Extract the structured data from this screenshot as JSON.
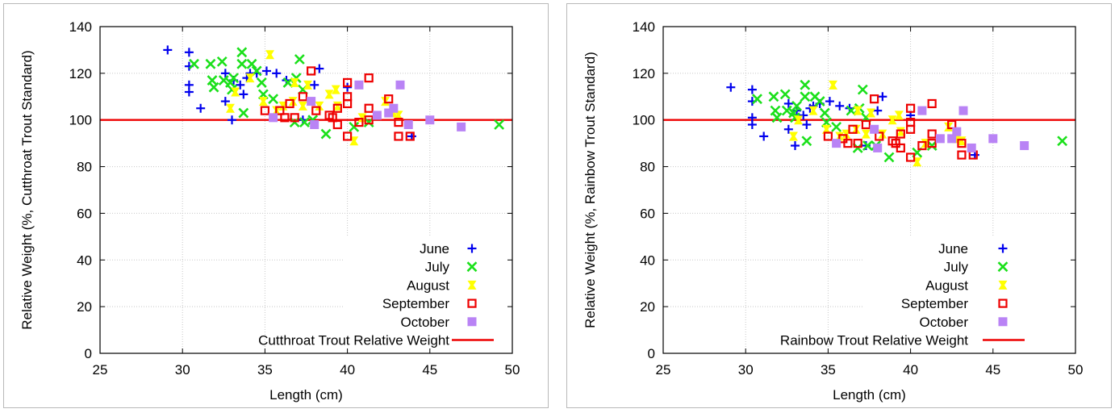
{
  "colors": {
    "June": "#0000ee",
    "July": "#1be01b",
    "August": "#ffff00",
    "September": "#ee0000",
    "October": "#b983f5",
    "reference_line": "#ee0000"
  },
  "chart_data": [
    {
      "type": "scatter",
      "title": "",
      "xlabel": "Length (cm)",
      "ylabel": "Relative Weight (%, Cutthroat Trout Standard)",
      "xlim": [
        25,
        50
      ],
      "ylim": [
        0,
        140
      ],
      "xticks": [
        25,
        30,
        35,
        40,
        45,
        50
      ],
      "yticks": [
        0,
        20,
        40,
        60,
        80,
        100,
        120,
        140
      ],
      "grid": true,
      "legend_position": "bottom-right",
      "reference_line": {
        "name": "Cutthroat Trout Relative Weight",
        "y": 100
      },
      "series": [
        {
          "name": "June",
          "marker": "plus",
          "points": [
            [
              29.1,
              130
            ],
            [
              30.4,
              129
            ],
            [
              30.4,
              123
            ],
            [
              30.4,
              115
            ],
            [
              30.4,
              112
            ],
            [
              31.1,
              105
            ],
            [
              32.6,
              120
            ],
            [
              32.6,
              108
            ],
            [
              33.0,
              100
            ],
            [
              33.1,
              117
            ],
            [
              33.5,
              115
            ],
            [
              33.7,
              111
            ],
            [
              33.9,
              118
            ],
            [
              34.1,
              120
            ],
            [
              34.5,
              120
            ],
            [
              35.1,
              121
            ],
            [
              35.7,
              120
            ],
            [
              36.3,
              117
            ],
            [
              37.3,
              100
            ],
            [
              38.0,
              115
            ],
            [
              38.3,
              122
            ],
            [
              40.0,
              114
            ],
            [
              43.9,
              93
            ]
          ]
        },
        {
          "name": "July",
          "marker": "x",
          "points": [
            [
              30.7,
              124
            ],
            [
              31.7,
              124
            ],
            [
              31.8,
              117
            ],
            [
              31.9,
              114
            ],
            [
              32.4,
              125
            ],
            [
              32.5,
              117
            ],
            [
              32.9,
              116
            ],
            [
              33.0,
              113
            ],
            [
              33.1,
              118
            ],
            [
              33.6,
              129
            ],
            [
              33.6,
              124
            ],
            [
              33.7,
              103
            ],
            [
              34.2,
              124
            ],
            [
              34.5,
              121
            ],
            [
              34.8,
              116
            ],
            [
              34.9,
              111
            ],
            [
              35.5,
              109
            ],
            [
              36.4,
              116
            ],
            [
              36.9,
              118
            ],
            [
              37.1,
              126
            ],
            [
              37.3,
              113
            ],
            [
              36.8,
              99
            ],
            [
              37.4,
              99
            ],
            [
              37.9,
              100
            ],
            [
              38.7,
              94
            ],
            [
              40.4,
              97
            ],
            [
              41.3,
              99
            ],
            [
              49.2,
              98
            ]
          ]
        },
        {
          "name": "August",
          "marker": "square",
          "points": [
            [
              32.9,
              105
            ],
            [
              33.2,
              112
            ],
            [
              34.1,
              118
            ],
            [
              34.9,
              108
            ],
            [
              35.3,
              128
            ],
            [
              35.7,
              104
            ],
            [
              36.1,
              106
            ],
            [
              36.7,
              108
            ],
            [
              36.8,
              116
            ],
            [
              37.3,
              106
            ],
            [
              37.6,
              115
            ],
            [
              38.3,
              106
            ],
            [
              38.9,
              111
            ],
            [
              39.3,
              113
            ],
            [
              39.4,
              106
            ],
            [
              40.4,
              91
            ],
            [
              40.9,
              101
            ],
            [
              42.3,
              108
            ],
            [
              42.8,
              103
            ],
            [
              43.1,
              102
            ]
          ]
        },
        {
          "name": "September",
          "marker": "open-square",
          "points": [
            [
              35.0,
              104
            ],
            [
              35.9,
              104
            ],
            [
              36.2,
              101
            ],
            [
              36.5,
              107
            ],
            [
              36.8,
              101
            ],
            [
              37.3,
              110
            ],
            [
              37.8,
              121
            ],
            [
              38.1,
              104
            ],
            [
              38.9,
              102
            ],
            [
              39.1,
              101
            ],
            [
              39.4,
              98
            ],
            [
              39.4,
              105
            ],
            [
              40.0,
              116
            ],
            [
              40.0,
              110
            ],
            [
              40.0,
              107
            ],
            [
              40.0,
              93
            ],
            [
              40.7,
              99
            ],
            [
              41.3,
              118
            ],
            [
              41.3,
              105
            ],
            [
              41.3,
              100
            ],
            [
              42.5,
              109
            ],
            [
              43.1,
              99
            ],
            [
              43.1,
              93
            ],
            [
              43.8,
              93
            ]
          ]
        },
        {
          "name": "October",
          "marker": "filled-square",
          "points": [
            [
              35.5,
              101
            ],
            [
              37.8,
              108
            ],
            [
              38.0,
              98
            ],
            [
              40.7,
              115
            ],
            [
              41.8,
              102
            ],
            [
              42.5,
              103
            ],
            [
              42.8,
              105
            ],
            [
              43.2,
              115
            ],
            [
              43.7,
              98
            ],
            [
              45.0,
              100
            ],
            [
              46.9,
              97
            ]
          ]
        }
      ]
    },
    {
      "type": "scatter",
      "title": "",
      "xlabel": "Length (cm)",
      "ylabel": "Relative Weight (%, Rainbow Trout Standard)",
      "xlim": [
        25,
        50
      ],
      "ylim": [
        0,
        140
      ],
      "xticks": [
        25,
        30,
        35,
        40,
        45,
        50
      ],
      "yticks": [
        0,
        20,
        40,
        60,
        80,
        100,
        120,
        140
      ],
      "grid": true,
      "legend_position": "bottom-right",
      "reference_line": {
        "name": "Rainbow Trout Relative Weight",
        "y": 100
      },
      "series": [
        {
          "name": "June",
          "marker": "plus",
          "points": [
            [
              29.1,
              114
            ],
            [
              30.4,
              113
            ],
            [
              30.4,
              108
            ],
            [
              30.4,
              101
            ],
            [
              30.4,
              98
            ],
            [
              31.1,
              93
            ],
            [
              32.6,
              107
            ],
            [
              32.6,
              96
            ],
            [
              33.0,
              89
            ],
            [
              33.1,
              104
            ],
            [
              33.5,
              102
            ],
            [
              33.7,
              98
            ],
            [
              33.9,
              105
            ],
            [
              34.1,
              106
            ],
            [
              34.5,
              107
            ],
            [
              35.1,
              108
            ],
            [
              35.7,
              106
            ],
            [
              36.3,
              105
            ],
            [
              37.3,
              89
            ],
            [
              38.0,
              104
            ],
            [
              38.3,
              110
            ],
            [
              40.0,
              102
            ],
            [
              43.9,
              85
            ]
          ]
        },
        {
          "name": "July",
          "marker": "x",
          "points": [
            [
              30.7,
              109
            ],
            [
              31.7,
              110
            ],
            [
              31.8,
              104
            ],
            [
              31.9,
              101
            ],
            [
              32.4,
              111
            ],
            [
              32.5,
              104
            ],
            [
              32.9,
              103
            ],
            [
              33.0,
              101
            ],
            [
              33.1,
              106
            ],
            [
              33.6,
              115
            ],
            [
              33.6,
              110
            ],
            [
              33.7,
              91
            ],
            [
              34.2,
              110
            ],
            [
              34.5,
              108
            ],
            [
              34.8,
              103
            ],
            [
              34.9,
              99
            ],
            [
              35.5,
              97
            ],
            [
              36.4,
              104
            ],
            [
              36.9,
              105
            ],
            [
              37.1,
              113
            ],
            [
              37.3,
              101
            ],
            [
              36.8,
              88
            ],
            [
              37.4,
              89
            ],
            [
              37.9,
              89
            ],
            [
              38.7,
              84
            ],
            [
              40.4,
              86
            ],
            [
              41.3,
              89
            ],
            [
              49.2,
              91
            ]
          ]
        },
        {
          "name": "August",
          "marker": "square",
          "points": [
            [
              32.9,
              93
            ],
            [
              33.2,
              100
            ],
            [
              34.1,
              104
            ],
            [
              34.9,
              96
            ],
            [
              35.3,
              115
            ],
            [
              35.7,
              93
            ],
            [
              36.1,
              94
            ],
            [
              36.7,
              96
            ],
            [
              36.8,
              104
            ],
            [
              37.3,
              94
            ],
            [
              37.6,
              103
            ],
            [
              38.3,
              94
            ],
            [
              38.9,
              100
            ],
            [
              39.3,
              102
            ],
            [
              39.4,
              95
            ],
            [
              40.4,
              82
            ],
            [
              40.9,
              90
            ],
            [
              42.3,
              97
            ],
            [
              42.8,
              92
            ],
            [
              43.1,
              91
            ]
          ]
        },
        {
          "name": "September",
          "marker": "open-square",
          "points": [
            [
              35.0,
              93
            ],
            [
              35.9,
              92
            ],
            [
              36.2,
              90
            ],
            [
              36.5,
              96
            ],
            [
              36.8,
              90
            ],
            [
              37.3,
              98
            ],
            [
              37.8,
              109
            ],
            [
              38.1,
              93
            ],
            [
              38.9,
              91
            ],
            [
              39.1,
              90
            ],
            [
              39.4,
              88
            ],
            [
              39.4,
              94
            ],
            [
              40.0,
              105
            ],
            [
              40.0,
              99
            ],
            [
              40.0,
              96
            ],
            [
              40.0,
              84
            ],
            [
              40.7,
              89
            ],
            [
              41.3,
              107
            ],
            [
              41.3,
              94
            ],
            [
              41.3,
              90
            ],
            [
              42.5,
              98
            ],
            [
              43.1,
              90
            ],
            [
              43.1,
              85
            ],
            [
              43.8,
              85
            ]
          ]
        },
        {
          "name": "October",
          "marker": "filled-square",
          "points": [
            [
              35.5,
              90
            ],
            [
              37.8,
              96
            ],
            [
              38.0,
              88
            ],
            [
              40.7,
              104
            ],
            [
              41.8,
              92
            ],
            [
              42.5,
              92
            ],
            [
              42.8,
              95
            ],
            [
              43.2,
              104
            ],
            [
              43.7,
              88
            ],
            [
              45.0,
              92
            ],
            [
              46.9,
              89
            ]
          ]
        }
      ]
    }
  ]
}
